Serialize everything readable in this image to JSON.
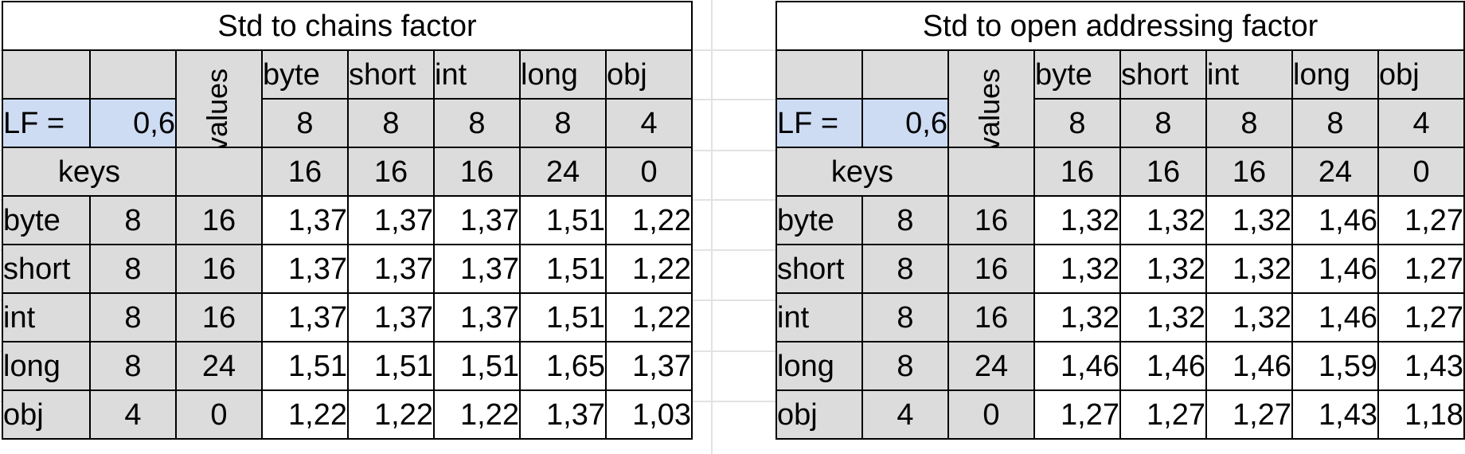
{
  "tables": [
    {
      "title": "Std to chains factor",
      "values_label": "values",
      "header_types": [
        "byte",
        "short",
        "int",
        "long",
        "obj"
      ],
      "lf_label": "LF =",
      "lf_value": "0,6",
      "value_sizes": [
        "8",
        "8",
        "8",
        "8",
        "4"
      ],
      "keys_label": "keys",
      "key_sizes": [
        "16",
        "16",
        "16",
        "24",
        "0"
      ],
      "rows": [
        {
          "type": "byte",
          "size": "8",
          "bytes": "16",
          "cells": [
            "1,37",
            "1,37",
            "1,37",
            "1,51",
            "1,22"
          ]
        },
        {
          "type": "short",
          "size": "8",
          "bytes": "16",
          "cells": [
            "1,37",
            "1,37",
            "1,37",
            "1,51",
            "1,22"
          ]
        },
        {
          "type": "int",
          "size": "8",
          "bytes": "16",
          "cells": [
            "1,37",
            "1,37",
            "1,37",
            "1,51",
            "1,22"
          ]
        },
        {
          "type": "long",
          "size": "8",
          "bytes": "24",
          "cells": [
            "1,51",
            "1,51",
            "1,51",
            "1,65",
            "1,37"
          ]
        },
        {
          "type": "obj",
          "size": "4",
          "bytes": "0",
          "cells": [
            "1,22",
            "1,22",
            "1,22",
            "1,37",
            "1,03"
          ]
        }
      ]
    },
    {
      "title": "Std to open addressing factor",
      "values_label": "values",
      "header_types": [
        "byte",
        "short",
        "int",
        "long",
        "obj"
      ],
      "lf_label": "LF =",
      "lf_value": "0,6",
      "value_sizes": [
        "8",
        "8",
        "8",
        "8",
        "4"
      ],
      "keys_label": "keys",
      "key_sizes": [
        "16",
        "16",
        "16",
        "24",
        "0"
      ],
      "rows": [
        {
          "type": "byte",
          "size": "8",
          "bytes": "16",
          "cells": [
            "1,32",
            "1,32",
            "1,32",
            "1,46",
            "1,27"
          ]
        },
        {
          "type": "short",
          "size": "8",
          "bytes": "16",
          "cells": [
            "1,32",
            "1,32",
            "1,32",
            "1,46",
            "1,27"
          ]
        },
        {
          "type": "int",
          "size": "8",
          "bytes": "16",
          "cells": [
            "1,32",
            "1,32",
            "1,32",
            "1,46",
            "1,27"
          ]
        },
        {
          "type": "long",
          "size": "8",
          "bytes": "24",
          "cells": [
            "1,46",
            "1,46",
            "1,46",
            "1,59",
            "1,43"
          ]
        },
        {
          "type": "obj",
          "size": "4",
          "bytes": "0",
          "cells": [
            "1,27",
            "1,27",
            "1,27",
            "1,43",
            "1,18"
          ]
        }
      ]
    }
  ],
  "colors": {
    "header_gray": "#dcdcdc",
    "input_blue": "#cddcf3",
    "border": "#000000",
    "gridline": "#e2e2e2"
  }
}
